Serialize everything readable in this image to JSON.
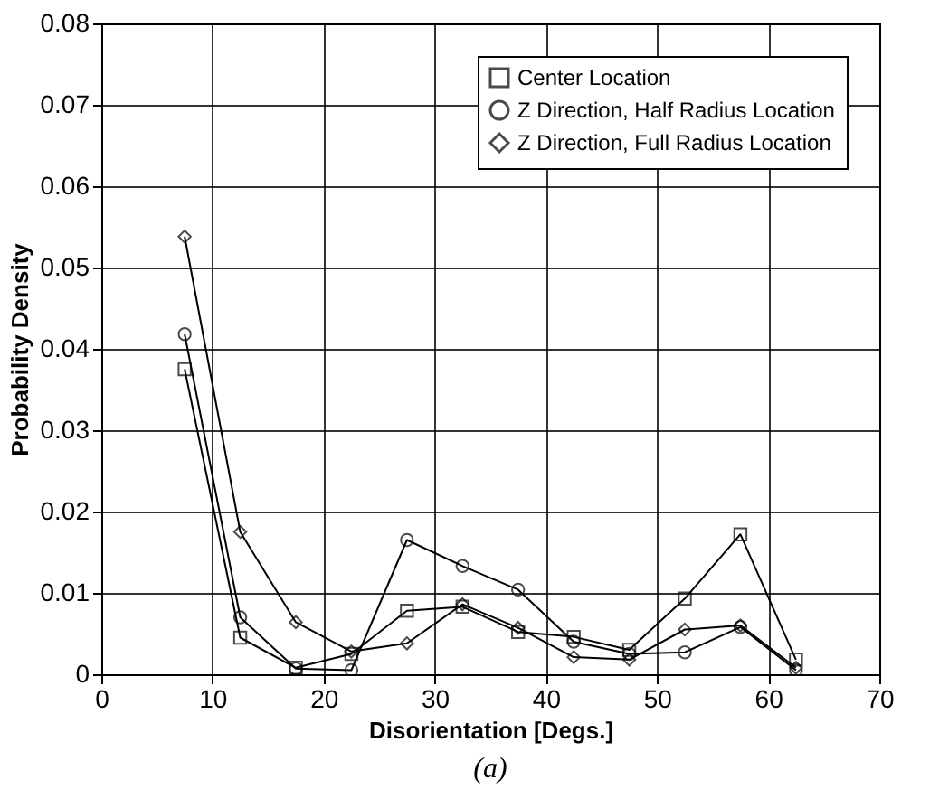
{
  "chart_data": {
    "type": "line",
    "xlabel": "Disorientation [Degs.]",
    "ylabel": "Probability Density",
    "annotations": [
      "(a)"
    ],
    "x": [
      7.5,
      12.5,
      17.5,
      22.5,
      27.5,
      32.5,
      37.5,
      42.5,
      47.5,
      52.5,
      57.5,
      62.5
    ],
    "series": [
      {
        "name": "Center Location",
        "color": "#000000",
        "marker": "square",
        "values": [
          0.0375,
          0.0045,
          0.0008,
          0.0025,
          0.0078,
          0.0083,
          0.0052,
          0.0046,
          0.003,
          0.0093,
          0.0172,
          0.0018
        ]
      },
      {
        "name": "Z Direction, Half Radius Location",
        "color": "#000000",
        "marker": "circle",
        "values": [
          0.0418,
          0.007,
          0.0007,
          0.0005,
          0.0165,
          0.0133,
          0.0104,
          0.004,
          0.0025,
          0.0027,
          0.0058,
          0.0005
        ]
      },
      {
        "name": "Z Direction, Full Radius Location",
        "color": "#000000",
        "marker": "diamond",
        "values": [
          0.0538,
          0.0175,
          0.0064,
          0.0028,
          0.0038,
          0.0086,
          0.0057,
          0.0021,
          0.0018,
          0.0055,
          0.006,
          0.0008
        ]
      }
    ],
    "xlim": [
      0,
      70
    ],
    "xticks": [
      0,
      10,
      20,
      30,
      40,
      50,
      60,
      70
    ],
    "ylim": [
      0,
      0.08
    ],
    "yticks": [
      0,
      0.01,
      0.02,
      0.03,
      0.04,
      0.05,
      0.06,
      0.07,
      0.08
    ],
    "grid": true,
    "legend": "top right"
  }
}
